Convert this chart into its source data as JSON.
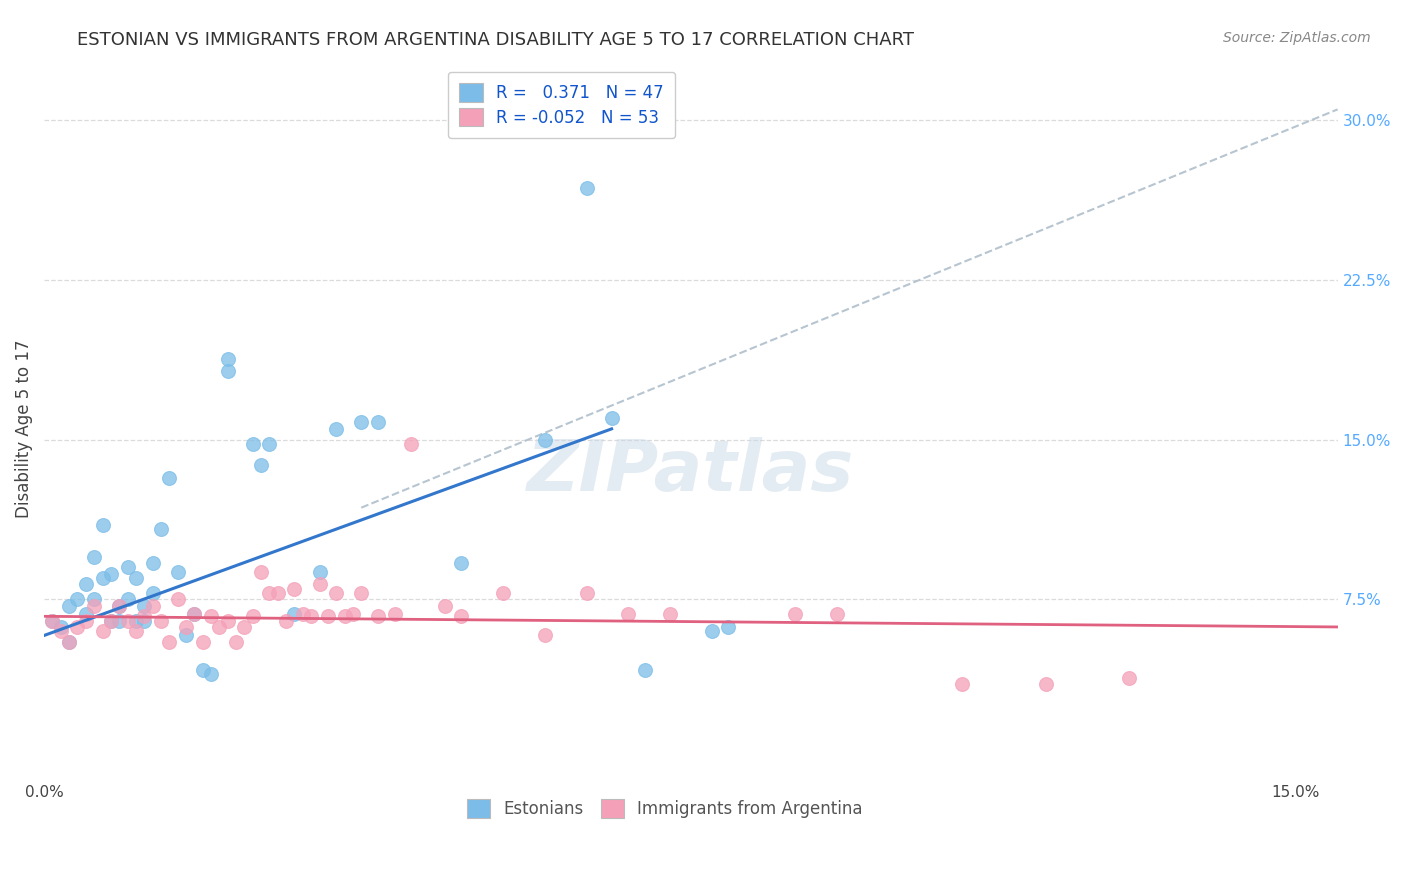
{
  "title": "ESTONIAN VS IMMIGRANTS FROM ARGENTINA DISABILITY AGE 5 TO 17 CORRELATION CHART",
  "source": "Source: ZipAtlas.com",
  "ylabel": "Disability Age 5 to 17",
  "legend_blue_r": "0.371",
  "legend_blue_n": "47",
  "legend_pink_r": "-0.052",
  "legend_pink_n": "53",
  "blue_color": "#7bbde8",
  "pink_color": "#f4a0b8",
  "blue_line_color": "#3377cc",
  "pink_line_color": "#e06080",
  "dashed_line_color": "#aabbc8",
  "background_color": "#ffffff",
  "grid_color": "#d8d8d8",
  "watermark": "ZIPatlas",
  "blue_scatter_x": [
    0.001,
    0.002,
    0.003,
    0.003,
    0.004,
    0.005,
    0.005,
    0.006,
    0.006,
    0.007,
    0.007,
    0.008,
    0.008,
    0.009,
    0.009,
    0.01,
    0.01,
    0.011,
    0.011,
    0.012,
    0.012,
    0.013,
    0.013,
    0.014,
    0.015,
    0.016,
    0.017,
    0.018,
    0.019,
    0.02,
    0.022,
    0.022,
    0.025,
    0.026,
    0.027,
    0.03,
    0.033,
    0.035,
    0.038,
    0.04,
    0.05,
    0.06,
    0.065,
    0.068,
    0.072,
    0.08,
    0.082
  ],
  "blue_scatter_y": [
    0.065,
    0.062,
    0.072,
    0.055,
    0.075,
    0.068,
    0.082,
    0.075,
    0.095,
    0.085,
    0.11,
    0.065,
    0.087,
    0.072,
    0.065,
    0.09,
    0.075,
    0.065,
    0.085,
    0.072,
    0.065,
    0.092,
    0.078,
    0.108,
    0.132,
    0.088,
    0.058,
    0.068,
    0.042,
    0.04,
    0.182,
    0.188,
    0.148,
    0.138,
    0.148,
    0.068,
    0.088,
    0.155,
    0.158,
    0.158,
    0.092,
    0.15,
    0.268,
    0.16,
    0.042,
    0.06,
    0.062
  ],
  "pink_scatter_x": [
    0.001,
    0.002,
    0.003,
    0.004,
    0.005,
    0.006,
    0.007,
    0.008,
    0.009,
    0.01,
    0.011,
    0.012,
    0.013,
    0.014,
    0.015,
    0.016,
    0.017,
    0.018,
    0.019,
    0.02,
    0.021,
    0.022,
    0.023,
    0.024,
    0.025,
    0.026,
    0.027,
    0.028,
    0.029,
    0.03,
    0.031,
    0.032,
    0.033,
    0.034,
    0.035,
    0.036,
    0.037,
    0.038,
    0.04,
    0.042,
    0.044,
    0.048,
    0.05,
    0.055,
    0.06,
    0.065,
    0.07,
    0.075,
    0.09,
    0.095,
    0.11,
    0.12,
    0.13
  ],
  "pink_scatter_y": [
    0.065,
    0.06,
    0.055,
    0.062,
    0.065,
    0.072,
    0.06,
    0.065,
    0.072,
    0.065,
    0.06,
    0.067,
    0.072,
    0.065,
    0.055,
    0.075,
    0.062,
    0.068,
    0.055,
    0.067,
    0.062,
    0.065,
    0.055,
    0.062,
    0.067,
    0.088,
    0.078,
    0.078,
    0.065,
    0.08,
    0.068,
    0.067,
    0.082,
    0.067,
    0.078,
    0.067,
    0.068,
    0.078,
    0.067,
    0.068,
    0.148,
    0.072,
    0.067,
    0.078,
    0.058,
    0.078,
    0.068,
    0.068,
    0.068,
    0.068,
    0.035,
    0.035,
    0.038
  ],
  "xlim": [
    0.0,
    0.155
  ],
  "ylim": [
    -0.01,
    0.32
  ],
  "blue_line_x0": 0.0,
  "blue_line_y0": 0.058,
  "blue_line_x1": 0.068,
  "blue_line_y1": 0.155,
  "pink_line_x0": 0.0,
  "pink_line_y0": 0.067,
  "pink_line_x1": 0.155,
  "pink_line_y1": 0.062,
  "dash_line_x0": 0.038,
  "dash_line_y0": 0.118,
  "dash_line_x1": 0.155,
  "dash_line_y1": 0.305,
  "right_ytick_vals": [
    0.075,
    0.15,
    0.225,
    0.3
  ],
  "right_ytick_labels": [
    "7.5%",
    "15.0%",
    "22.5%",
    "30.0%"
  ],
  "right_ytick_color": "#55aaff",
  "title_fontsize": 13,
  "source_fontsize": 10,
  "ylabel_fontsize": 12
}
